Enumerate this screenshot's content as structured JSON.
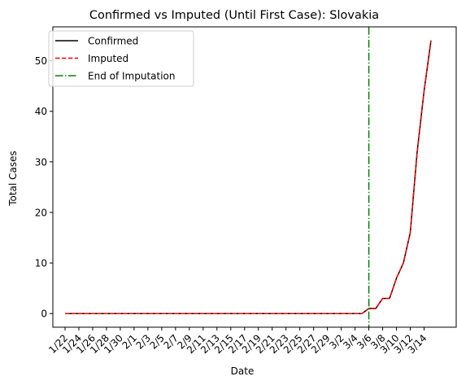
{
  "chart_data": {
    "type": "line",
    "title": "Confirmed vs Imputed (Until First Case): Slovakia",
    "xlabel": "Date",
    "ylabel": "Total Cases",
    "ylim": [
      -2.7,
      56.7
    ],
    "yticks": [
      0,
      10,
      20,
      30,
      40,
      50
    ],
    "x": [
      "1/22",
      "1/23",
      "1/24",
      "1/25",
      "1/26",
      "1/27",
      "1/28",
      "1/29",
      "1/30",
      "1/31",
      "2/1",
      "2/2",
      "2/3",
      "2/4",
      "2/5",
      "2/6",
      "2/7",
      "2/8",
      "2/9",
      "2/10",
      "2/11",
      "2/12",
      "2/13",
      "2/14",
      "2/15",
      "2/16",
      "2/17",
      "2/18",
      "2/19",
      "2/20",
      "2/21",
      "2/22",
      "2/23",
      "2/24",
      "2/25",
      "2/26",
      "2/27",
      "2/28",
      "2/29",
      "3/1",
      "3/2",
      "3/3",
      "3/4",
      "3/5",
      "3/6",
      "3/7",
      "3/8",
      "3/9",
      "3/10",
      "3/11",
      "3/12",
      "3/13",
      "3/14",
      "3/15"
    ],
    "xticks": [
      "1/22",
      "1/24",
      "1/26",
      "1/28",
      "1/30",
      "2/1",
      "2/3",
      "2/5",
      "2/7",
      "2/9",
      "2/11",
      "2/13",
      "2/15",
      "2/17",
      "2/19",
      "2/21",
      "2/23",
      "2/25",
      "2/27",
      "2/29",
      "3/2",
      "3/4",
      "3/6",
      "3/8",
      "3/10",
      "3/12",
      "3/14"
    ],
    "series": [
      {
        "name": "Confirmed",
        "color": "#000000",
        "dash": "solid",
        "values": [
          0,
          0,
          0,
          0,
          0,
          0,
          0,
          0,
          0,
          0,
          0,
          0,
          0,
          0,
          0,
          0,
          0,
          0,
          0,
          0,
          0,
          0,
          0,
          0,
          0,
          0,
          0,
          0,
          0,
          0,
          0,
          0,
          0,
          0,
          0,
          0,
          0,
          0,
          0,
          0,
          0,
          0,
          0,
          0,
          1,
          1,
          3,
          3,
          7,
          10,
          16,
          32,
          44,
          54
        ]
      },
      {
        "name": "Imputed",
        "color": "#ff0000",
        "dash": "dashed",
        "values": [
          0,
          0,
          0,
          0,
          0,
          0,
          0,
          0,
          0,
          0,
          0,
          0,
          0,
          0,
          0,
          0,
          0,
          0,
          0,
          0,
          0,
          0,
          0,
          0,
          0,
          0,
          0,
          0,
          0,
          0,
          0,
          0,
          0,
          0,
          0,
          0,
          0,
          0,
          0,
          0,
          0,
          0,
          0,
          0,
          1,
          1,
          3,
          3,
          7,
          10,
          16,
          32,
          44,
          54
        ]
      }
    ],
    "vline": {
      "name": "End of Imputation",
      "color": "#008000",
      "dash": "dashdot",
      "x": "3/6"
    },
    "legend": {
      "position": "top-left"
    },
    "grid": false
  }
}
